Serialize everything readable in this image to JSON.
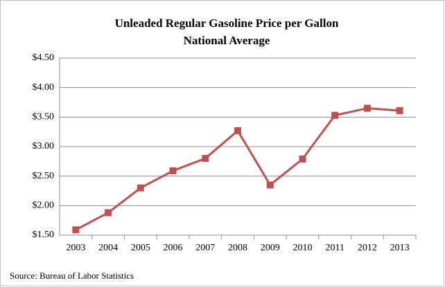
{
  "chart_data": {
    "type": "line",
    "title": "Unleaded Regular Gasoline Price per Gallon",
    "subtitle": "National Average",
    "source": "Source: Bureau of Labor Statistics",
    "categories": [
      "2003",
      "2004",
      "2005",
      "2006",
      "2007",
      "2008",
      "2009",
      "2010",
      "2011",
      "2012",
      "2013"
    ],
    "series": [
      {
        "name": "Price per Gallon",
        "color": "#c0504d",
        "values": [
          1.59,
          1.88,
          2.3,
          2.59,
          2.8,
          3.27,
          2.35,
          2.79,
          3.53,
          3.65,
          3.61
        ]
      }
    ],
    "ylim": [
      1.5,
      4.5
    ],
    "yticks": [
      {
        "value": 1.5,
        "label": "$1.50"
      },
      {
        "value": 2,
        "label": "$2.00"
      },
      {
        "value": 2.5,
        "label": "$2.50"
      },
      {
        "value": 3,
        "label": "$3.00"
      },
      {
        "value": 3.5,
        "label": "$3.50"
      },
      {
        "value": 4,
        "label": "$4.00"
      },
      {
        "value": 4.5,
        "label": "$4.50"
      }
    ],
    "grid": true
  }
}
